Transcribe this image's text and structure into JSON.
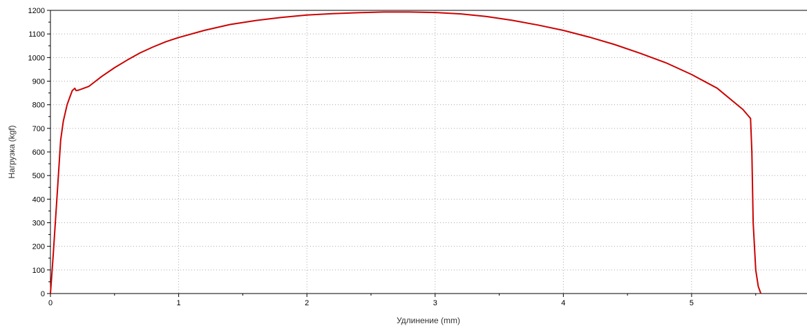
{
  "chart_data": {
    "type": "line",
    "xlabel": "Удлинение (mm)",
    "ylabel": "Нагрузка (kgf)",
    "xlim": [
      0,
      5.9
    ],
    "ylim": [
      0,
      1200
    ],
    "x_ticks": [
      "0",
      "1",
      "2",
      "3",
      "4",
      "5"
    ],
    "y_ticks": [
      "0",
      "100",
      "200",
      "300",
      "400",
      "500",
      "600",
      "700",
      "800",
      "900",
      "1000",
      "1100",
      "1200"
    ],
    "grid": true,
    "legend": "none",
    "line_color": "#cc0000",
    "series": [
      {
        "x": [
          0,
          0.02,
          0.05,
          0.08,
          0.1,
          0.13,
          0.15,
          0.17,
          0.19,
          0.2,
          0.22,
          0.25,
          0.3,
          0.4,
          0.5,
          0.6,
          0.7,
          0.8,
          0.9,
          1.0,
          1.2,
          1.4,
          1.6,
          1.8,
          2.0,
          2.2,
          2.4,
          2.6,
          2.8,
          3.0,
          3.2,
          3.4,
          3.6,
          3.8,
          4.0,
          4.2,
          4.4,
          4.6,
          4.8,
          5.0,
          5.2,
          5.4,
          5.46,
          5.47,
          5.48,
          5.5,
          5.52,
          5.54
        ],
        "y": [
          0,
          150,
          400,
          650,
          730,
          800,
          830,
          860,
          870,
          860,
          862,
          868,
          878,
          920,
          957,
          990,
          1020,
          1045,
          1067,
          1085,
          1115,
          1140,
          1157,
          1170,
          1180,
          1186,
          1190,
          1193,
          1193,
          1191,
          1185,
          1174,
          1158,
          1138,
          1115,
          1087,
          1055,
          1018,
          978,
          928,
          870,
          780,
          742,
          600,
          300,
          100,
          30,
          0
        ]
      }
    ]
  }
}
